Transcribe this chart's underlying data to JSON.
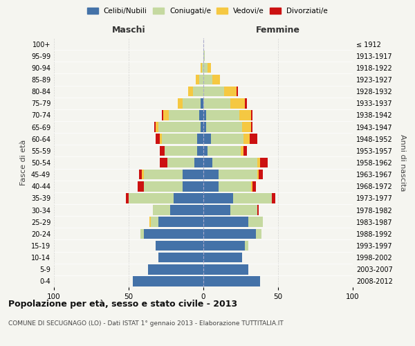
{
  "age_groups": [
    "0-4",
    "5-9",
    "10-14",
    "15-19",
    "20-24",
    "25-29",
    "30-34",
    "35-39",
    "40-44",
    "45-49",
    "50-54",
    "55-59",
    "60-64",
    "65-69",
    "70-74",
    "75-79",
    "80-84",
    "85-89",
    "90-94",
    "95-99",
    "100+"
  ],
  "birth_years": [
    "2008-2012",
    "2003-2007",
    "1998-2002",
    "1993-1997",
    "1988-1992",
    "1983-1987",
    "1978-1982",
    "1973-1977",
    "1968-1972",
    "1963-1967",
    "1958-1962",
    "1953-1957",
    "1948-1952",
    "1943-1947",
    "1938-1942",
    "1933-1937",
    "1928-1932",
    "1923-1927",
    "1918-1922",
    "1913-1917",
    "≤ 1912"
  ],
  "males": {
    "celibe": [
      47,
      37,
      30,
      32,
      40,
      30,
      22,
      20,
      14,
      14,
      6,
      4,
      4,
      2,
      3,
      2,
      0,
      0,
      0,
      0,
      0
    ],
    "coniugato": [
      0,
      0,
      0,
      0,
      2,
      5,
      12,
      30,
      26,
      26,
      18,
      22,
      24,
      28,
      20,
      12,
      7,
      3,
      1,
      0,
      0
    ],
    "vedovo": [
      0,
      0,
      0,
      0,
      0,
      1,
      0,
      0,
      0,
      1,
      0,
      0,
      1,
      2,
      4,
      3,
      3,
      2,
      1,
      0,
      0
    ],
    "divorziato": [
      0,
      0,
      0,
      0,
      0,
      0,
      0,
      2,
      4,
      2,
      5,
      3,
      3,
      1,
      1,
      0,
      0,
      0,
      0,
      0,
      0
    ]
  },
  "females": {
    "nubile": [
      38,
      30,
      26,
      28,
      35,
      30,
      18,
      20,
      10,
      10,
      6,
      3,
      5,
      2,
      2,
      0,
      0,
      0,
      0,
      0,
      0
    ],
    "coniugata": [
      0,
      0,
      0,
      2,
      4,
      10,
      18,
      26,
      22,
      26,
      30,
      22,
      22,
      24,
      22,
      18,
      14,
      6,
      3,
      1,
      0
    ],
    "vedova": [
      0,
      0,
      0,
      0,
      0,
      0,
      0,
      0,
      1,
      1,
      2,
      2,
      4,
      6,
      8,
      10,
      8,
      5,
      2,
      0,
      0
    ],
    "divorziata": [
      0,
      0,
      0,
      0,
      0,
      0,
      1,
      2,
      2,
      3,
      5,
      2,
      5,
      1,
      1,
      1,
      1,
      0,
      0,
      0,
      0
    ]
  },
  "color_celibe": "#4472a8",
  "color_coniugato": "#c5d9a0",
  "color_vedovo": "#f5c842",
  "color_divorziato": "#cc1111",
  "xlim": 100,
  "title": "Popolazione per età, sesso e stato civile - 2013",
  "subtitle": "COMUNE DI SECUGNAGO (LO) - Dati ISTAT 1° gennaio 2013 - Elaborazione TUTTITALIA.IT",
  "ylabel": "Fasce di età",
  "ylabel_right": "Anni di nascita",
  "label_maschi": "Maschi",
  "label_femmine": "Femmine",
  "legend_celibe": "Celibi/Nubili",
  "legend_coniugato": "Coniugati/e",
  "legend_vedovo": "Vedovi/e",
  "legend_divorziato": "Divorziati/e",
  "bg_color": "#f5f5f0"
}
